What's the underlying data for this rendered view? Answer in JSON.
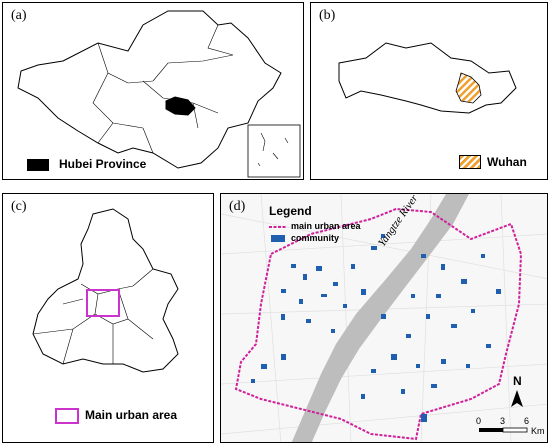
{
  "panels": {
    "a": {
      "label": "(a)",
      "legend_text": "Hubei Province"
    },
    "b": {
      "label": "(b)",
      "legend_text": "Wuhan"
    },
    "c": {
      "label": "(c)",
      "legend_text": "Main urban area"
    },
    "d": {
      "label": "(d)",
      "legend_title": "Legend",
      "legend_items": [
        "main urban area",
        "community"
      ],
      "river_label": "Yangtze River",
      "north_label": "N",
      "scale_ticks": [
        "0",
        "3",
        "6"
      ],
      "scale_unit": "Km"
    }
  },
  "colors": {
    "hubei_fill": "#000000",
    "wuhan_hatch_orange": "#f0a030",
    "main_urban_outline": "#d0209a",
    "community_blue": "#1f5fb0",
    "river_gray": "#bdbdbd"
  }
}
